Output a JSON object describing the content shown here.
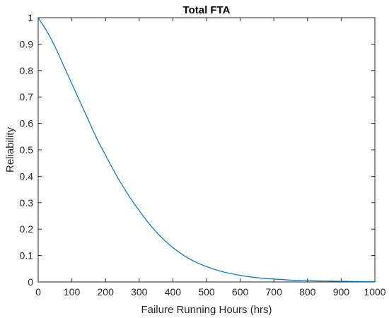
{
  "colors": {
    "series_line": "#0072bd",
    "axes": "#262626",
    "background": "#ffffff"
  },
  "chart_data": {
    "type": "line",
    "title": "Total FTA",
    "xlabel": "Failure Running Hours (hrs)",
    "ylabel": "Reliability",
    "xlim": [
      0,
      1000
    ],
    "ylim": [
      0,
      1
    ],
    "grid": false,
    "legend": "none",
    "xticks": [
      "0",
      "100",
      "200",
      "300",
      "400",
      "500",
      "600",
      "700",
      "800",
      "900",
      "1000"
    ],
    "yticks": [
      "0",
      "0.1",
      "0.2",
      "0.3",
      "0.4",
      "0.5",
      "0.6",
      "0.7",
      "0.8",
      "0.9",
      "1"
    ],
    "series": [
      {
        "x": [
          0,
          25,
          50,
          75,
          100,
          125,
          150,
          175,
          200,
          225,
          250,
          275,
          300,
          325,
          350,
          375,
          400,
          425,
          450,
          475,
          500,
          525,
          550,
          575,
          600,
          625,
          650,
          675,
          700,
          725,
          750,
          775,
          800,
          825,
          850,
          875,
          900,
          925,
          950,
          975,
          1000
        ],
        "y": [
          1.0,
          0.95,
          0.89,
          0.82,
          0.75,
          0.68,
          0.61,
          0.54,
          0.48,
          0.42,
          0.365,
          0.315,
          0.27,
          0.228,
          0.19,
          0.158,
          0.13,
          0.107,
          0.087,
          0.071,
          0.058,
          0.047,
          0.038,
          0.031,
          0.025,
          0.02,
          0.016,
          0.013,
          0.011,
          0.009,
          0.007,
          0.006,
          0.005,
          0.004,
          0.0035,
          0.003,
          0.0025,
          0.002,
          0.0015,
          0.0012,
          0.001
        ]
      }
    ]
  }
}
